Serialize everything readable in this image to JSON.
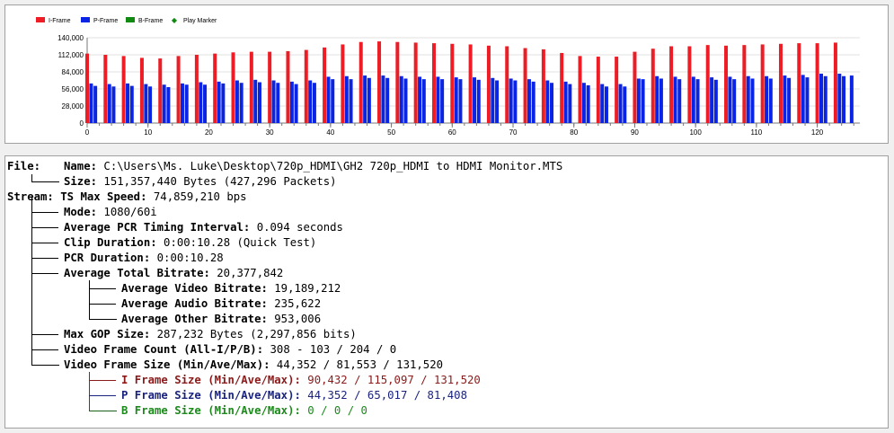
{
  "chart_data": {
    "type": "bar",
    "legend": [
      {
        "name": "I-Frame",
        "color": "#ee1c24"
      },
      {
        "name": "P-Frame",
        "color": "#0a24e6"
      },
      {
        "name": "B-Frame",
        "color": "#108a10"
      },
      {
        "name": "Play Marker",
        "color": "#108a10",
        "marker": "diamond"
      }
    ],
    "legend_position": "top-left",
    "ylim": [
      0,
      140000
    ],
    "yticks": [
      "140,000",
      "112,000",
      "84,000",
      "56,000",
      "28,000",
      "0"
    ],
    "ytick_values": [
      140000,
      112000,
      84000,
      56000,
      28000,
      0
    ],
    "xlim": [
      0,
      127
    ],
    "xticks": [
      "0",
      "10",
      "20",
      "30",
      "40",
      "50",
      "60",
      "70",
      "80",
      "90",
      "100",
      "110",
      "120"
    ],
    "xtick_values": [
      0,
      10,
      20,
      30,
      40,
      50,
      60,
      70,
      80,
      90,
      100,
      110,
      120
    ],
    "grid": true,
    "series": [
      {
        "name": "I-Frame",
        "color": "#ee1c24",
        "x": [
          0,
          3,
          6,
          9,
          12,
          15,
          18,
          21,
          24,
          27,
          30,
          33,
          36,
          39,
          42,
          45,
          48,
          51,
          54,
          57,
          60,
          63,
          66,
          69,
          72,
          75,
          78,
          81,
          84,
          87,
          90,
          93,
          96,
          99,
          102,
          105,
          108,
          111,
          114,
          117,
          120,
          123
        ],
        "values": [
          114000,
          112000,
          110000,
          107000,
          106000,
          110000,
          112000,
          114000,
          116000,
          117000,
          117000,
          118000,
          120000,
          124000,
          129000,
          133000,
          134000,
          133000,
          132000,
          131000,
          130000,
          129000,
          127000,
          126000,
          123000,
          121000,
          115000,
          110000,
          109000,
          109000,
          117000,
          122000,
          126000,
          126000,
          128000,
          127000,
          128000,
          129000,
          130000,
          131000,
          131000,
          132000
        ]
      },
      {
        "name": "P-Frame",
        "color": "#0a24e6",
        "x": [
          0.65,
          1.35,
          3.65,
          4.35,
          6.65,
          7.35,
          9.65,
          10.35,
          12.65,
          13.35,
          15.65,
          16.35,
          18.65,
          19.35,
          21.65,
          22.35,
          24.65,
          25.35,
          27.65,
          28.35,
          30.65,
          31.35,
          33.65,
          34.35,
          36.65,
          37.35,
          39.65,
          40.35,
          42.65,
          43.35,
          45.65,
          46.35,
          48.65,
          49.35,
          51.65,
          52.35,
          54.65,
          55.35,
          57.65,
          58.35,
          60.65,
          61.35,
          63.65,
          64.35,
          66.65,
          67.35,
          69.65,
          70.35,
          72.65,
          73.35,
          75.65,
          76.35,
          78.65,
          79.35,
          81.65,
          82.35,
          84.65,
          85.35,
          87.65,
          88.35,
          90.65,
          91.35,
          93.65,
          94.35,
          96.65,
          97.35,
          99.65,
          100.35,
          102.65,
          103.35,
          105.65,
          106.35,
          108.65,
          109.35,
          111.65,
          112.35,
          114.65,
          115.35,
          117.65,
          118.35,
          120.65,
          121.35,
          123.65,
          124.35,
          125.65
        ],
        "values": [
          65000,
          61000,
          64000,
          60000,
          65000,
          61000,
          64000,
          60000,
          63000,
          59000,
          65000,
          63000,
          67000,
          63000,
          68000,
          65000,
          70000,
          66000,
          71000,
          67000,
          70000,
          66000,
          68000,
          64000,
          70000,
          66000,
          76000,
          72000,
          77000,
          72000,
          78000,
          74000,
          78000,
          74000,
          77000,
          73000,
          76000,
          72000,
          76000,
          72000,
          75000,
          72000,
          75000,
          71000,
          74000,
          70000,
          73000,
          70000,
          72000,
          68000,
          70000,
          66000,
          68000,
          64000,
          66000,
          62000,
          64000,
          60000,
          64000,
          60000,
          73000,
          72000,
          77000,
          73000,
          76000,
          72000,
          76000,
          72000,
          75000,
          71000,
          76000,
          72000,
          77000,
          73000,
          77000,
          73000,
          78000,
          74000,
          79000,
          75000,
          81000,
          77000,
          81000,
          77000,
          78000
        ]
      },
      {
        "name": "B-Frame",
        "color": "#108a10",
        "x": [],
        "values": []
      }
    ]
  },
  "tree": {
    "file_label": "File:",
    "name_label": "Name:",
    "name_value": " C:\\Users\\Ms. Luke\\Desktop\\720p_HDMI\\GH2 720p_HDMI to HDMI Monitor.MTS",
    "size_label": "Size:",
    "size_value": " 151,357,440 Bytes (427,296 Packets)",
    "stream_label": "Stream:",
    "ts_label": "TS Max Speed:",
    "ts_value": " 74,859,210 bps",
    "mode_label": "Mode:",
    "mode_value": " 1080/60i",
    "pcr_interval_label": "Average PCR Timing Interval:",
    "pcr_interval_value": " 0.094 seconds",
    "clip_label": "Clip Duration:",
    "clip_value": " 0:00:10.28 (Quick Test)",
    "pcr_duration_label": "PCR Duration:",
    "pcr_duration_value": " 0:00:10.28",
    "total_bitrate_label": "Average Total Bitrate:",
    "total_bitrate_value": " 20,377,842",
    "video_bitrate_label": "Average Video Bitrate:",
    "video_bitrate_value": " 19,189,212",
    "audio_bitrate_label": "Average Audio Bitrate:",
    "audio_bitrate_value": " 235,622",
    "other_bitrate_label": "Average Other Bitrate:",
    "other_bitrate_value": " 953,006",
    "gop_label": "Max GOP Size:",
    "gop_value": " 287,232 Bytes (2,297,856 bits)",
    "frame_count_label": "Video Frame Count (All-I/P/B):",
    "frame_count_value": " 308 - 103 / 204 / 0",
    "frame_size_label": "Video Frame Size (Min/Ave/Max):",
    "frame_size_value": " 44,352 / 81,553 / 131,520",
    "i_size_label": "I Frame Size (Min/Ave/Max):",
    "i_size_value": " 90,432 / 115,097 / 131,520",
    "p_size_label": "P Frame Size (Min/Ave/Max):",
    "p_size_value": " 44,352 / 65,017 / 81,408",
    "b_size_label": "B Frame Size (Min/Ave/Max):",
    "b_size_value": " 0 / 0 / 0"
  }
}
